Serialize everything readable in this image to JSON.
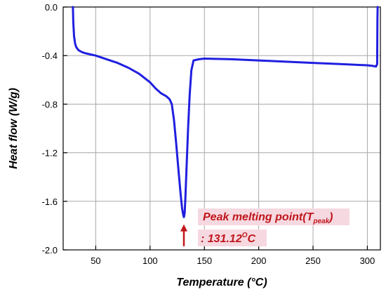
{
  "chart_data": {
    "type": "line",
    "xlabel": "Temperature (°C)",
    "ylabel": "Heat flow (W/g)",
    "xlim": [
      20,
      312
    ],
    "ylim": [
      -2.0,
      0.0
    ],
    "xticks": [
      50,
      100,
      150,
      200,
      250,
      300
    ],
    "xtick_labels": [
      "50",
      "100",
      "150",
      "200",
      "250",
      "300"
    ],
    "yticks": [
      0.0,
      -0.4,
      -0.8,
      -1.2,
      -1.6,
      -2.0
    ],
    "ytick_labels": [
      "0.0",
      "-0.4",
      "-0.8",
      "-1.2",
      "-1.6",
      "-2.0"
    ],
    "grid": true,
    "line_color": "#1f1fe0",
    "annotation_color": "#c0161b",
    "annotation_bg": "#f6d9e0",
    "series": [
      {
        "x": [
          29,
          29.3,
          30,
          31,
          32,
          34,
          37,
          40,
          45,
          50,
          55,
          60,
          70,
          80,
          90,
          100,
          105,
          110,
          115,
          118,
          120,
          122,
          124,
          126,
          128,
          129.5,
          130.5,
          131.12,
          131.8,
          132.5,
          133.5,
          135,
          136.5,
          138,
          140,
          145,
          150,
          175,
          200,
          225,
          250,
          275,
          300,
          305,
          308,
          309,
          309.3,
          309.5
        ],
        "y": [
          0.0,
          -0.12,
          -0.24,
          -0.3,
          -0.33,
          -0.355,
          -0.37,
          -0.38,
          -0.39,
          -0.4,
          -0.415,
          -0.43,
          -0.46,
          -0.5,
          -0.55,
          -0.62,
          -0.67,
          -0.71,
          -0.735,
          -0.76,
          -0.8,
          -0.93,
          -1.12,
          -1.33,
          -1.53,
          -1.66,
          -1.71,
          -1.73,
          -1.7,
          -1.58,
          -1.34,
          -1.0,
          -0.72,
          -0.52,
          -0.44,
          -0.43,
          -0.425,
          -0.43,
          -0.44,
          -0.45,
          -0.46,
          -0.47,
          -0.48,
          -0.485,
          -0.49,
          -0.47,
          -0.1,
          0.0
        ]
      }
    ],
    "annotation": {
      "line1_text": "Peak melting point(T",
      "line1_sub": "peak",
      "line1_close": ")",
      "line2_text": ": 131.12",
      "line2_sup": "O",
      "line2_unit": "C",
      "arrow_x": 131.12,
      "arrow_y_from": -1.97,
      "arrow_y_to": -1.79
    }
  }
}
